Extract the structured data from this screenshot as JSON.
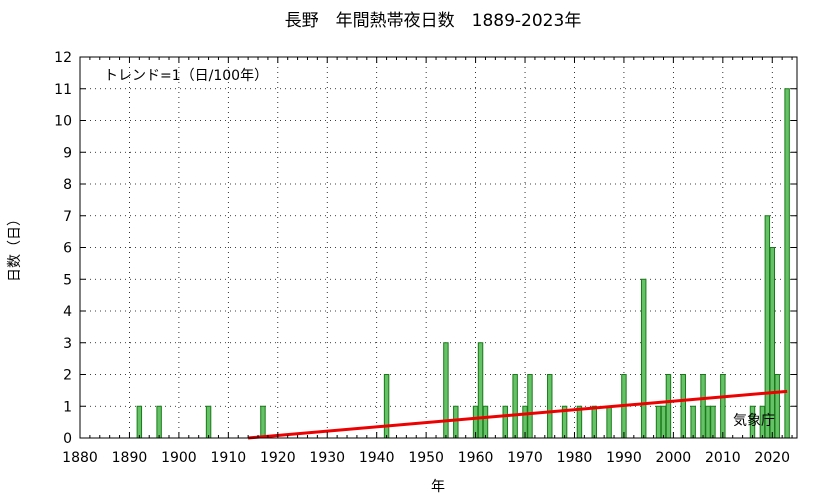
{
  "chart_data": {
    "type": "bar",
    "title": "長野　年間熱帯夜日数　1889-2023年",
    "xlabel": "年",
    "ylabel": "日数（日）",
    "xlim": [
      1880,
      2025
    ],
    "ylim": [
      0,
      12
    ],
    "x_ticks": [
      1880,
      1890,
      1900,
      1910,
      1920,
      1930,
      1940,
      1950,
      1960,
      1970,
      1980,
      1990,
      2000,
      2010,
      2020
    ],
    "y_ticks": [
      0,
      1,
      2,
      3,
      4,
      5,
      6,
      7,
      8,
      9,
      10,
      11,
      12
    ],
    "grid": true,
    "colors": {
      "bar_fill": "#66c266",
      "bar_edge": "#1a7a1a",
      "trend": "#ee0000"
    },
    "bars": [
      {
        "x": 1892,
        "y": 1
      },
      {
        "x": 1896,
        "y": 1
      },
      {
        "x": 1906,
        "y": 1
      },
      {
        "x": 1917,
        "y": 1
      },
      {
        "x": 1942,
        "y": 2
      },
      {
        "x": 1954,
        "y": 3
      },
      {
        "x": 1956,
        "y": 1
      },
      {
        "x": 1960,
        "y": 1
      },
      {
        "x": 1961,
        "y": 3
      },
      {
        "x": 1962,
        "y": 1
      },
      {
        "x": 1966,
        "y": 1
      },
      {
        "x": 1968,
        "y": 2
      },
      {
        "x": 1970,
        "y": 1
      },
      {
        "x": 1971,
        "y": 2
      },
      {
        "x": 1975,
        "y": 2
      },
      {
        "x": 1978,
        "y": 1
      },
      {
        "x": 1981,
        "y": 1
      },
      {
        "x": 1984,
        "y": 1
      },
      {
        "x": 1987,
        "y": 1
      },
      {
        "x": 1990,
        "y": 2
      },
      {
        "x": 1994,
        "y": 5
      },
      {
        "x": 1997,
        "y": 1
      },
      {
        "x": 1998,
        "y": 1
      },
      {
        "x": 1999,
        "y": 2
      },
      {
        "x": 2002,
        "y": 2
      },
      {
        "x": 2004,
        "y": 1
      },
      {
        "x": 2006,
        "y": 2
      },
      {
        "x": 2007,
        "y": 1
      },
      {
        "x": 2008,
        "y": 1
      },
      {
        "x": 2010,
        "y": 2
      },
      {
        "x": 2016,
        "y": 1
      },
      {
        "x": 2018,
        "y": 1
      },
      {
        "x": 2019,
        "y": 7
      },
      {
        "x": 2020,
        "y": 6
      },
      {
        "x": 2021,
        "y": 2
      },
      {
        "x": 2023,
        "y": 11
      }
    ],
    "trend_line": {
      "x": [
        1914,
        2023
      ],
      "y": [
        0,
        1.47
      ]
    },
    "annotations": {
      "trend_text": "トレンド=1（日/100年）",
      "source": "気象庁"
    }
  }
}
